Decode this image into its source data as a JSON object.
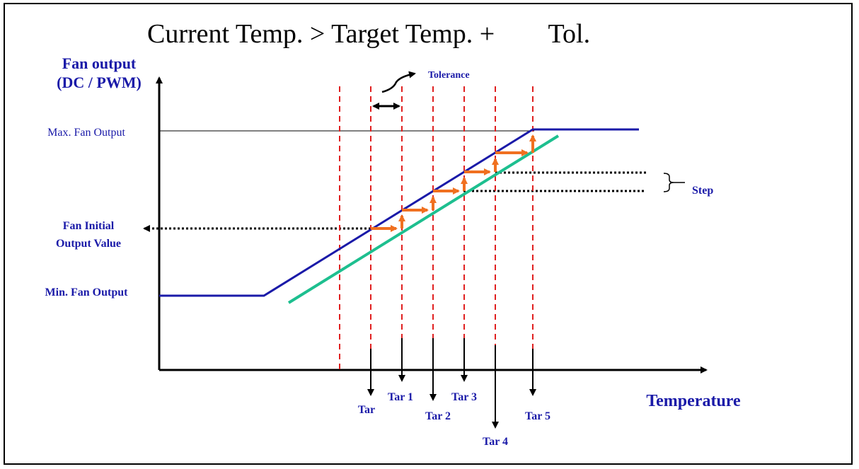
{
  "title": "Current Temp. > Target Temp. +        Tol.",
  "y_axis_label_line1": "Fan output",
  "y_axis_label_line2": "(DC / PWM)",
  "x_axis_label": "Temperature",
  "y_labels": {
    "max": "Max. Fan Output",
    "initial_line1": "Fan Initial",
    "initial_line2": "Output Value",
    "min": "Min. Fan Output"
  },
  "annotations": {
    "tolerance": "Tolerance",
    "step": "Step"
  },
  "targets": [
    "Tar",
    "Tar 1",
    "Tar 2",
    "Tar 3",
    "Tar 4",
    "Tar 5"
  ],
  "colors": {
    "axis": "#000000",
    "fan_curve": "#1a1aa8",
    "target_curve": "#1dbf8f",
    "stairs": "#f07020",
    "threshold_lines": "#e02020",
    "label_text": "#1a1aa8"
  }
}
